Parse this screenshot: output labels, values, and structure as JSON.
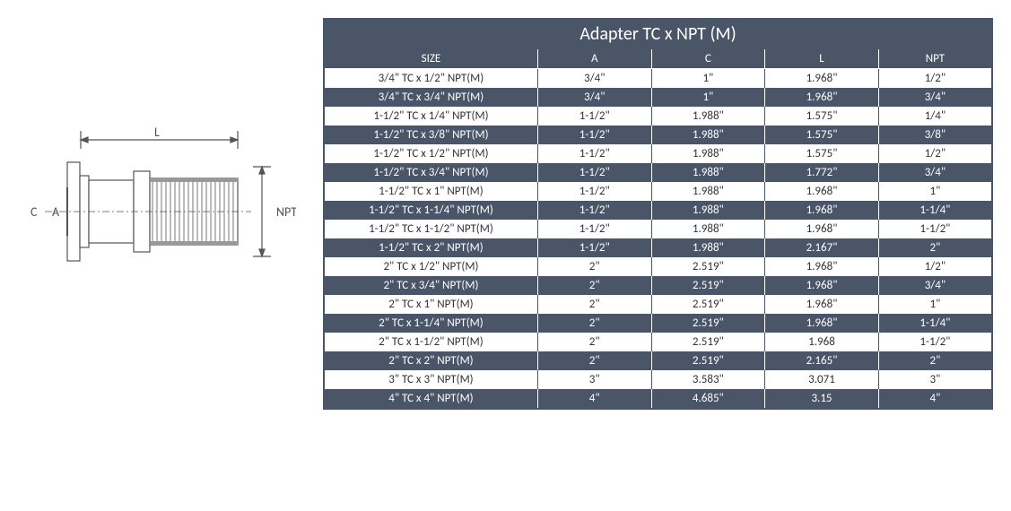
{
  "diagram": {
    "labels": {
      "C": "C",
      "A": "A",
      "L": "L",
      "NPT": "NPT"
    },
    "stroke": "#555555",
    "thread_fill": "#888888"
  },
  "table": {
    "title": "Adapter TC x NPT (M)",
    "title_fontsize": 20,
    "header_bg": "#4a5568",
    "header_fg": "#ffffff",
    "row_light_bg": "#ffffff",
    "row_light_fg": "#333333",
    "row_dark_bg": "#4a5568",
    "row_dark_fg": "#ffffff",
    "cell_fontsize": 13,
    "columns": [
      "SIZE",
      "A",
      "C",
      "L",
      "NPT"
    ],
    "rows": [
      [
        "3/4\" TC x 1/2\" NPT(M)",
        "3/4\"",
        "1\"",
        "1.968\"",
        "1/2\""
      ],
      [
        "3/4\" TC x 3/4\" NPT(M)",
        "3/4\"",
        "1\"",
        "1.968\"",
        "3/4\""
      ],
      [
        "1-1/2\" TC x 1/4\" NPT(M)",
        "1-1/2\"",
        "1.988\"",
        "1.575\"",
        "1/4\""
      ],
      [
        "1-1/2\" TC x 3/8\" NPT(M)",
        "1-1/2\"",
        "1.988\"",
        "1.575\"",
        "3/8\""
      ],
      [
        "1-1/2\" TC x 1/2\" NPT(M)",
        "1-1/2\"",
        "1.988\"",
        "1.575\"",
        "1/2\""
      ],
      [
        "1-1/2\" TC x 3/4\" NPT(M)",
        "1-1/2\"",
        "1.988\"",
        "1.772\"",
        "3/4\""
      ],
      [
        "1-1/2\" TC x 1\" NPT(M)",
        "1-1/2\"",
        "1.988\"",
        "1.968\"",
        "1\""
      ],
      [
        "1-1/2\" TC x 1-1/4\" NPT(M)",
        "1-1/2\"",
        "1.988\"",
        "1.968\"",
        "1-1/4\""
      ],
      [
        "1-1/2\" TC x 1-1/2\" NPT(M)",
        "1-1/2\"",
        "1.988\"",
        "1.968\"",
        "1-1/2\""
      ],
      [
        "1-1/2\" TC x 2\" NPT(M)",
        "1-1/2\"",
        "1.988\"",
        "2.167\"",
        "2\""
      ],
      [
        "2\" TC x 1/2\" NPT(M)",
        "2\"",
        "2.519\"",
        "1.968\"",
        "1/2\""
      ],
      [
        "2\" TC x 3/4\" NPT(M)",
        "2\"",
        "2.519\"",
        "1.968\"",
        "3/4\""
      ],
      [
        "2\" TC x 1\" NPT(M)",
        "2\"",
        "2.519\"",
        "1.968\"",
        "1\""
      ],
      [
        "2\" TC x 1-1/4\" NPT(M)",
        "2\"",
        "2.519\"",
        "1.968\"",
        "1-1/4\""
      ],
      [
        "2\" TC x 1-1/2\" NPT(M)",
        "2\"",
        "2.519\"",
        "1.968",
        "1-1/2\""
      ],
      [
        "2\" TC x 2\" NPT(M)",
        "2\"",
        "2.519\"",
        "2.165\"",
        "2\""
      ],
      [
        "3\" TC x 3\" NPT(M)",
        "3\"",
        "3.583\"",
        "3.071",
        "3\""
      ],
      [
        "4\" TC x 4\" NPT(M)",
        "4\"",
        "4.685\"",
        "3.15",
        "4\""
      ]
    ]
  }
}
